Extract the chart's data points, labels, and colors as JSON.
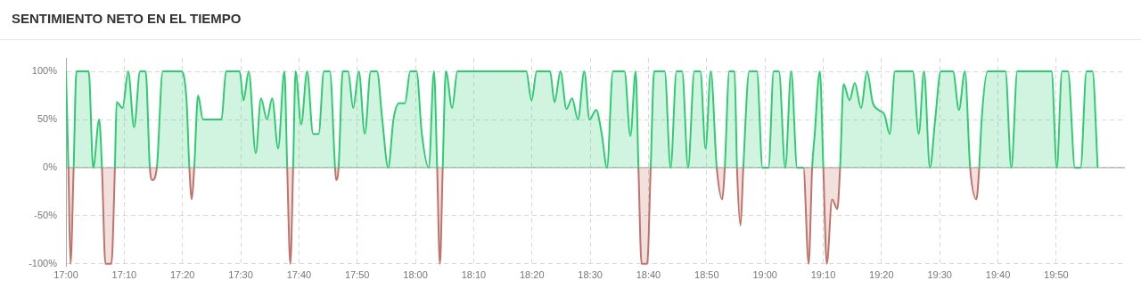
{
  "chart_data": {
    "type": "area",
    "title": "SENTIMIENTO NETO EN EL TIEMPO",
    "x": [
      17.0,
      17.007,
      17.013,
      17.022,
      17.03,
      17.065,
      17.078,
      17.095,
      17.103,
      17.113,
      17.13,
      17.14,
      17.145,
      17.162,
      17.178,
      17.195,
      17.212,
      17.228,
      17.24,
      17.247,
      17.26,
      17.277,
      17.33,
      17.345,
      17.353,
      17.36,
      17.367,
      17.378,
      17.392,
      17.445,
      17.458,
      17.497,
      17.508,
      17.523,
      17.543,
      17.558,
      17.575,
      17.59,
      17.607,
      17.625,
      17.633,
      17.642,
      17.65,
      17.657,
      17.673,
      17.69,
      17.707,
      17.723,
      17.738,
      17.755,
      17.77,
      17.773,
      17.78,
      17.792,
      17.807,
      17.822,
      17.838,
      17.855,
      17.872,
      17.89,
      17.905,
      17.922,
      17.937,
      17.953,
      17.97,
      17.985,
      18.003,
      18.018,
      18.038,
      18.053,
      18.062,
      18.07,
      18.078,
      18.087,
      18.105,
      18.12,
      18.317,
      18.332,
      18.347,
      18.385,
      18.398,
      18.415,
      18.432,
      18.448,
      18.465,
      18.483,
      18.498,
      18.517,
      18.533,
      18.548,
      18.565,
      18.598,
      18.615,
      18.63,
      18.638,
      18.647,
      18.663,
      18.673,
      18.683,
      18.713,
      18.73,
      18.747,
      18.763,
      18.78,
      18.798,
      18.815,
      18.83,
      18.845,
      18.862,
      18.878,
      18.885,
      18.898,
      18.913,
      18.92,
      18.93,
      18.938,
      18.955,
      18.977,
      18.993,
      19.01,
      19.025,
      19.04,
      19.058,
      19.075,
      19.092,
      19.11,
      19.125,
      19.135,
      19.142,
      19.157,
      19.167,
      19.177,
      19.192,
      19.207,
      19.215,
      19.225,
      19.242,
      19.257,
      19.275,
      19.292,
      19.308,
      19.325,
      19.342,
      19.357,
      19.372,
      19.423,
      19.44,
      19.455,
      19.472,
      19.487,
      19.503,
      19.538,
      19.555,
      19.572,
      19.587,
      19.605,
      19.613,
      19.62,
      19.637,
      19.688,
      19.705,
      19.722,
      19.82,
      19.835,
      19.85,
      19.867,
      19.887,
      19.903,
      19.92,
      19.937,
      19.952
    ],
    "series": [
      {
        "color": "#2ecc71",
        "values": [
          100,
          0,
          -100,
          0,
          100,
          100,
          0,
          50,
          0,
          -100,
          -100,
          0,
          68,
          62,
          100,
          42,
          100,
          100,
          0,
          -13,
          0,
          100,
          100,
          70,
          0,
          -33,
          0,
          75,
          50,
          50,
          100,
          100,
          70,
          100,
          15,
          72,
          50,
          72,
          20,
          100,
          0,
          -100,
          0,
          100,
          45,
          100,
          35,
          35,
          100,
          100,
          0,
          -13,
          0,
          100,
          100,
          62,
          100,
          35,
          100,
          100,
          50,
          0,
          50,
          67,
          67,
          100,
          100,
          36,
          0,
          100,
          0,
          -100,
          0,
          100,
          62,
          100,
          100,
          70,
          100,
          100,
          68,
          100,
          61,
          72,
          50,
          100,
          50,
          60,
          35,
          0,
          100,
          100,
          33,
          100,
          0,
          -100,
          -100,
          0,
          100,
          100,
          0,
          100,
          100,
          0,
          100,
          100,
          20,
          100,
          0,
          -33,
          0,
          100,
          100,
          0,
          -60,
          0,
          100,
          100,
          0,
          0,
          100,
          100,
          0,
          100,
          0,
          0,
          -100,
          0,
          33,
          100,
          0,
          -100,
          -33,
          -43,
          0,
          87,
          70,
          88,
          62,
          100,
          68,
          60,
          55,
          35,
          100,
          100,
          35,
          100,
          0,
          50,
          100,
          100,
          60,
          100,
          0,
          -33,
          0,
          50,
          100,
          100,
          0,
          100,
          100,
          0,
          100,
          100,
          0,
          0,
          100,
          100,
          0
        ],
        "colors": [
          "#2ecc71",
          "#2ecc71",
          "#c0736a",
          "#2ecc71",
          "#2ecc71",
          "#2ecc71",
          "#2ecc71",
          "#2ecc71",
          "#2ecc71",
          "#c0736a",
          "#c0736a",
          "#2ecc71",
          "#2ecc71",
          "#2ecc71",
          "#2ecc71",
          "#2ecc71",
          "#2ecc71",
          "#2ecc71",
          "#2ecc71",
          "#c0736a",
          "#2ecc71",
          "#2ecc71",
          "#2ecc71",
          "#2ecc71",
          "#2ecc71",
          "#c0736a",
          "#2ecc71",
          "#2ecc71",
          "#2ecc71",
          "#2ecc71",
          "#2ecc71",
          "#2ecc71",
          "#2ecc71",
          "#2ecc71",
          "#2ecc71",
          "#2ecc71",
          "#2ecc71",
          "#2ecc71",
          "#2ecc71",
          "#2ecc71",
          "#2ecc71",
          "#c0736a",
          "#2ecc71",
          "#2ecc71",
          "#2ecc71",
          "#2ecc71",
          "#2ecc71",
          "#2ecc71",
          "#2ecc71",
          "#2ecc71",
          "#2ecc71",
          "#c0736a",
          "#2ecc71",
          "#2ecc71",
          "#2ecc71",
          "#2ecc71",
          "#2ecc71",
          "#2ecc71",
          "#2ecc71",
          "#2ecc71",
          "#2ecc71",
          "#2ecc71",
          "#2ecc71",
          "#2ecc71",
          "#2ecc71",
          "#2ecc71",
          "#2ecc71",
          "#2ecc71",
          "#2ecc71",
          "#2ecc71",
          "#2ecc71",
          "#c0736a",
          "#2ecc71",
          "#2ecc71",
          "#2ecc71",
          "#2ecc71",
          "#2ecc71",
          "#2ecc71",
          "#2ecc71",
          "#2ecc71",
          "#2ecc71",
          "#2ecc71",
          "#2ecc71",
          "#2ecc71",
          "#2ecc71",
          "#2ecc71",
          "#2ecc71",
          "#2ecc71",
          "#2ecc71",
          "#2ecc71",
          "#2ecc71",
          "#2ecc71",
          "#2ecc71",
          "#2ecc71",
          "#2ecc71",
          "#c0736a",
          "#c0736a",
          "#2ecc71",
          "#2ecc71",
          "#2ecc71",
          "#2ecc71",
          "#2ecc71",
          "#2ecc71",
          "#2ecc71",
          "#2ecc71",
          "#2ecc71",
          "#2ecc71",
          "#2ecc71",
          "#2ecc71",
          "#c0736a",
          "#2ecc71",
          "#2ecc71",
          "#2ecc71",
          "#2ecc71",
          "#c0736a",
          "#2ecc71",
          "#2ecc71",
          "#2ecc71",
          "#2ecc71",
          "#2ecc71",
          "#2ecc71",
          "#2ecc71",
          "#2ecc71",
          "#2ecc71",
          "#2ecc71",
          "#2ecc71",
          "#c0736a",
          "#2ecc71",
          "#2ecc71",
          "#2ecc71",
          "#2ecc71",
          "#c0736a",
          "#c0736a",
          "#c0736a",
          "#2ecc71",
          "#2ecc71",
          "#2ecc71",
          "#2ecc71",
          "#2ecc71",
          "#2ecc71",
          "#2ecc71",
          "#2ecc71",
          "#2ecc71",
          "#2ecc71",
          "#2ecc71",
          "#2ecc71",
          "#2ecc71",
          "#2ecc71",
          "#2ecc71",
          "#2ecc71",
          "#2ecc71",
          "#2ecc71",
          "#2ecc71",
          "#2ecc71",
          "#2ecc71",
          "#c0736a",
          "#2ecc71",
          "#2ecc71",
          "#2ecc71",
          "#2ecc71",
          "#2ecc71",
          "#2ecc71",
          "#2ecc71",
          "#2ecc71",
          "#2ecc71",
          "#2ecc71",
          "#2ecc71",
          "#2ecc71",
          "#2ecc71",
          "#2ecc71",
          "#2ecc71"
        ]
      }
    ],
    "xlim": [
      17,
      20.03
    ],
    "xticks": [
      {
        "value": 17,
        "label": "17:00"
      },
      {
        "value": 17.1667,
        "label": "17:10"
      },
      {
        "value": 17.3333,
        "label": "17:20"
      },
      {
        "value": 17.5,
        "label": "17:30"
      },
      {
        "value": 17.6667,
        "label": "17:40"
      },
      {
        "value": 17.8333,
        "label": "17:50"
      },
      {
        "value": 18,
        "label": "18:00"
      },
      {
        "value": 18.1667,
        "label": "18:10"
      },
      {
        "value": 18.3333,
        "label": "18:20"
      },
      {
        "value": 18.5,
        "label": "18:30"
      },
      {
        "value": 18.6667,
        "label": "18:40"
      },
      {
        "value": 18.8333,
        "label": "18:50"
      },
      {
        "value": 19,
        "label": "19:00"
      },
      {
        "value": 19.1667,
        "label": "19:10"
      },
      {
        "value": 19.3333,
        "label": "19:20"
      },
      {
        "value": 19.5,
        "label": "19:30"
      },
      {
        "value": 19.6667,
        "label": "19:40"
      },
      {
        "value": 19.8333,
        "label": "19:50"
      }
    ],
    "ylim": [
      -102,
      114
    ],
    "yticks": [
      {
        "value": -100,
        "label": "-100%"
      },
      {
        "value": -50,
        "label": "-50%"
      },
      {
        "value": 0,
        "label": "0%"
      },
      {
        "value": 50,
        "label": "50%"
      },
      {
        "value": 100,
        "label": "100%"
      }
    ],
    "ref_lines": [
      {
        "axis": "y",
        "value": 0,
        "color": "#9e9e9e"
      }
    ],
    "grid": true,
    "legend": false,
    "marker": "none",
    "line_style": "solid"
  }
}
